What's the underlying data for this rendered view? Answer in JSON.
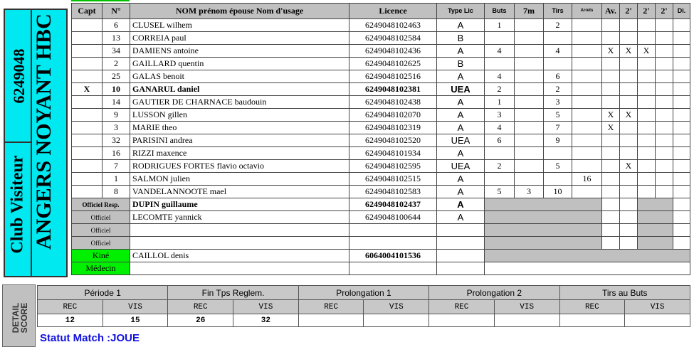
{
  "club": {
    "number": "6249048",
    "label": "Club Visiteur",
    "name": "ANGERS NOYANT HBC",
    "color": "#00e8f0"
  },
  "headers": {
    "capt": "Capt",
    "num": "N°",
    "nom": "NOM prénom épouse Nom d'usage",
    "licence": "Licence",
    "type": "Type Lic",
    "buts": "Buts",
    "sept": "7m",
    "tirs": "Tirs",
    "arrets": "Arrets",
    "av": "Av.",
    "d1": "2'",
    "d2": "2'",
    "d3": "2'",
    "di": "Di."
  },
  "players": [
    {
      "capt": "",
      "num": "6",
      "name": "CLUSEL wilhem",
      "licence": "6249048102463",
      "type": "A",
      "buts": "1",
      "sept": "",
      "tirs": "2",
      "arrets": "",
      "av": "",
      "d1": "",
      "d2": "",
      "d3": "",
      "di": ""
    },
    {
      "capt": "",
      "num": "13",
      "name": "CORREIA paul",
      "licence": "6249048102584",
      "type": "B",
      "buts": "",
      "sept": "",
      "tirs": "",
      "arrets": "",
      "av": "",
      "d1": "",
      "d2": "",
      "d3": "",
      "di": ""
    },
    {
      "capt": "",
      "num": "34",
      "name": "DAMIENS antoine",
      "licence": "6249048102436",
      "type": "A",
      "buts": "4",
      "sept": "",
      "tirs": "4",
      "arrets": "",
      "av": "X",
      "d1": "X",
      "d2": "X",
      "d3": "",
      "di": ""
    },
    {
      "capt": "",
      "num": "2",
      "name": "GAILLARD quentin",
      "licence": "6249048102625",
      "type": "B",
      "buts": "",
      "sept": "",
      "tirs": "",
      "arrets": "",
      "av": "",
      "d1": "",
      "d2": "",
      "d3": "",
      "di": ""
    },
    {
      "capt": "",
      "num": "25",
      "name": "GALAS benoit",
      "licence": "6249048102516",
      "type": "A",
      "buts": "4",
      "sept": "",
      "tirs": "6",
      "arrets": "",
      "av": "",
      "d1": "",
      "d2": "",
      "d3": "",
      "di": ""
    },
    {
      "capt": "X",
      "num": "10",
      "name": "GANARUL daniel",
      "licence": "6249048102381",
      "type": "UEA",
      "buts": "2",
      "sept": "",
      "tirs": "2",
      "arrets": "",
      "av": "",
      "d1": "",
      "d2": "",
      "d3": "",
      "di": "",
      "bold": true
    },
    {
      "capt": "",
      "num": "14",
      "name": "GAUTIER DE CHARNACE baudouin",
      "licence": "6249048102438",
      "type": "A",
      "buts": "1",
      "sept": "",
      "tirs": "3",
      "arrets": "",
      "av": "",
      "d1": "",
      "d2": "",
      "d3": "",
      "di": ""
    },
    {
      "capt": "",
      "num": "9",
      "name": "LUSSON gillen",
      "licence": "6249048102070",
      "type": "A",
      "buts": "3",
      "sept": "",
      "tirs": "5",
      "arrets": "",
      "av": "X",
      "d1": "X",
      "d2": "",
      "d3": "",
      "di": ""
    },
    {
      "capt": "",
      "num": "3",
      "name": "MARIE theo",
      "licence": "6249048102319",
      "type": "A",
      "buts": "4",
      "sept": "",
      "tirs": "7",
      "arrets": "",
      "av": "X",
      "d1": "",
      "d2": "",
      "d3": "",
      "di": ""
    },
    {
      "capt": "",
      "num": "32",
      "name": "PARISINI andrea",
      "licence": "6249048102520",
      "type": "UEA",
      "buts": "6",
      "sept": "",
      "tirs": "9",
      "arrets": "",
      "av": "",
      "d1": "",
      "d2": "",
      "d3": "",
      "di": ""
    },
    {
      "capt": "",
      "num": "16",
      "name": "RIZZI maxence",
      "licence": "6249048101934",
      "type": "A",
      "buts": "",
      "sept": "",
      "tirs": "",
      "arrets": "",
      "av": "",
      "d1": "",
      "d2": "",
      "d3": "",
      "di": ""
    },
    {
      "capt": "",
      "num": "7",
      "name": "RODRIGUES FORTES flavio octavio",
      "licence": "6249048102595",
      "type": "UEA",
      "buts": "2",
      "sept": "",
      "tirs": "5",
      "arrets": "",
      "av": "",
      "d1": "X",
      "d2": "",
      "d3": "",
      "di": ""
    },
    {
      "capt": "",
      "num": "1",
      "name": "SALMON julien",
      "licence": "6249048102515",
      "type": "A",
      "buts": "",
      "sept": "",
      "tirs": "",
      "arrets": "16",
      "av": "",
      "d1": "",
      "d2": "",
      "d3": "",
      "di": ""
    },
    {
      "capt": "",
      "num": "8",
      "name": "VANDELANNOOTE mael",
      "licence": "6249048102583",
      "type": "A",
      "buts": "5",
      "sept": "3",
      "tirs": "10",
      "arrets": "",
      "av": "",
      "d1": "",
      "d2": "",
      "d3": "",
      "di": ""
    }
  ],
  "officials": [
    {
      "role": "Officiel Resp.",
      "name": "DUPIN guillaume",
      "licence": "6249048102437",
      "type": "A",
      "bold": true
    },
    {
      "role": "Officiel",
      "name": "LECOMTE yannick",
      "licence": "6249048100644",
      "type": "A"
    },
    {
      "role": "Officiel",
      "name": "",
      "licence": "",
      "type": ""
    },
    {
      "role": "Officiel",
      "name": "",
      "licence": "",
      "type": ""
    }
  ],
  "kine": {
    "role": "Kiné",
    "name": "CAILLOL denis",
    "licence": "6064004101536"
  },
  "medecin": {
    "role": "Médecin",
    "name": "",
    "licence": ""
  },
  "detail_score": {
    "label_1": "DETAIL",
    "label_2": "SCORE",
    "periods": [
      {
        "label": "Période 1",
        "rec": "12",
        "vis": "15"
      },
      {
        "label": "Fin Tps Reglem.",
        "rec": "26",
        "vis": "32"
      },
      {
        "label": "Prolongation 1",
        "rec": "",
        "vis": ""
      },
      {
        "label": "Prolongation 2",
        "rec": "",
        "vis": ""
      },
      {
        "label": "Tirs au Buts",
        "rec": "",
        "vis": ""
      }
    ],
    "rec_label": "REC",
    "vis_label": "VIS"
  },
  "statut": "Statut Match :JOUE",
  "colors": {
    "header_gray": "#c0c0c0",
    "green": "#00f000",
    "statut_blue": "#1010e0"
  }
}
